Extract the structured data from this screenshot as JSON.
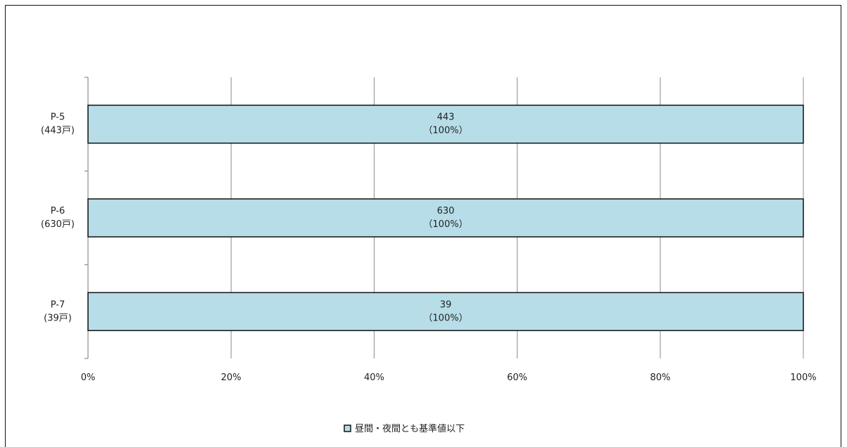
{
  "chart_data": {
    "type": "bar",
    "orientation": "horizontal",
    "stacked": "percent",
    "categories": [
      {
        "line1": "P-5",
        "line2": "(443戸)"
      },
      {
        "line1": "P-6",
        "line2": "(630戸)"
      },
      {
        "line1": "P-7",
        "line2": "(39戸)"
      }
    ],
    "series": [
      {
        "name": "昼間・夜間とも基準値以下",
        "color": "#b7dde8",
        "values": [
          100,
          100,
          100
        ],
        "counts": [
          443,
          630,
          39
        ],
        "labels": [
          {
            "line1": "443",
            "line2": "（100%）"
          },
          {
            "line1": "630",
            "line2": "（100%）"
          },
          {
            "line1": "39",
            "line2": "（100%）"
          }
        ]
      }
    ],
    "x_ticks": [
      "0%",
      "20%",
      "40%",
      "60%",
      "80%",
      "100%"
    ],
    "xlim": [
      0,
      100
    ],
    "grid": "vertical",
    "legend_position": "bottom"
  }
}
